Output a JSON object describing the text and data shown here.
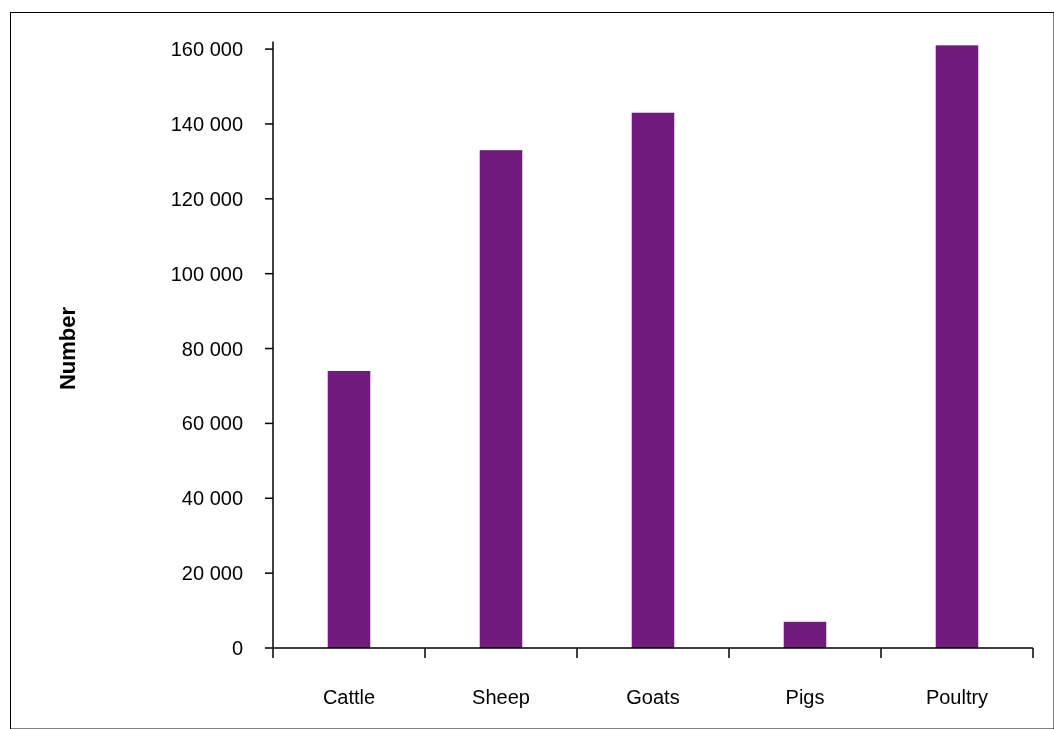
{
  "chart_data": {
    "type": "bar",
    "ylabel": "Number",
    "categories": [
      "Cattle",
      "Sheep",
      "Goats",
      "Pigs",
      "Poultry"
    ],
    "values": [
      74000,
      133000,
      143000,
      7000,
      161000
    ],
    "color": "#701c7c",
    "ylim": [
      0,
      162000
    ],
    "yticks": [
      {
        "value": 0,
        "label": "0"
      },
      {
        "value": 20000,
        "label": "20 000"
      },
      {
        "value": 40000,
        "label": "40 000"
      },
      {
        "value": 60000,
        "label": "60 000"
      },
      {
        "value": 80000,
        "label": "80 000"
      },
      {
        "value": 100000,
        "label": "100 000"
      },
      {
        "value": 120000,
        "label": "120 000"
      },
      {
        "value": 140000,
        "label": "140 000"
      },
      {
        "value": 160000,
        "label": "160 000"
      }
    ],
    "grid": false
  }
}
